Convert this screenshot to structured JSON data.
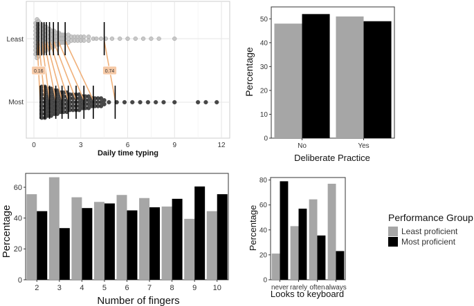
{
  "colors": {
    "least": "#a6a6a6",
    "most": "#000000",
    "panel_bg": "#ffffff",
    "grid": "#e6e6e6",
    "connector": "#f0b079",
    "dot_least": "#bdbdbd",
    "dot_most": "#1a1a1a"
  },
  "legend": {
    "title": "Performance Group",
    "items": [
      "Least proficient",
      "Most proficient"
    ]
  },
  "chart_data": [
    {
      "type": "scatter",
      "xlabel": "Daily time typing",
      "ylabel": "",
      "xlim": [
        0,
        12
      ],
      "xticks": [
        "0",
        "3",
        "6",
        "9",
        "12"
      ],
      "ycategories": [
        "Least",
        "Most"
      ],
      "grid": true,
      "quantiles": {
        "least": [
          0.2,
          0.3,
          0.5,
          0.65,
          0.8,
          1.0,
          1.25,
          1.55,
          2.0,
          4.5
        ],
        "most": [
          0.4,
          0.7,
          1.0,
          1.4,
          1.8,
          2.2,
          2.7,
          3.2,
          3.8,
          5.2
        ]
      },
      "annotations": [
        {
          "label": "0.16",
          "quantile_index": 0
        },
        {
          "label": "0.74",
          "quantile_index": 9
        }
      ],
      "points": {
        "least_x": [
          0.1,
          0.2,
          0.3,
          0.4,
          0.5,
          0.6,
          0.7,
          0.8,
          0.9,
          1.0,
          1.1,
          1.2,
          1.3,
          1.4,
          1.5,
          1.6,
          1.7,
          1.8,
          1.9,
          2.0,
          2.2,
          2.4,
          2.6,
          2.8,
          3.0,
          3.2,
          3.5,
          3.8,
          4.0,
          4.3,
          4.6,
          5.0,
          5.5,
          6.0,
          6.5,
          7.0,
          7.5,
          8.0,
          9.0
        ],
        "least_counts": [
          9,
          11,
          10,
          9,
          8,
          8,
          7,
          7,
          6,
          6,
          5,
          5,
          5,
          4,
          4,
          4,
          3,
          3,
          3,
          3,
          3,
          2,
          2,
          2,
          2,
          2,
          2,
          1,
          1,
          1,
          1,
          1,
          1,
          1,
          1,
          1,
          1,
          1,
          1
        ],
        "most_x": [
          0.5,
          0.7,
          0.9,
          1.1,
          1.3,
          1.5,
          1.7,
          1.9,
          2.1,
          2.3,
          2.5,
          2.7,
          2.9,
          3.1,
          3.3,
          3.5,
          3.7,
          3.9,
          4.1,
          4.3,
          4.5,
          4.8,
          5.3,
          5.8,
          6.3,
          6.8,
          7.3,
          7.8,
          8.3,
          9.0,
          10.5,
          11.0,
          11.7
        ],
        "most_counts": [
          9,
          9,
          8,
          8,
          7,
          7,
          6,
          6,
          6,
          5,
          5,
          5,
          5,
          4,
          4,
          4,
          3,
          3,
          3,
          3,
          2,
          1,
          1,
          1,
          1,
          1,
          1,
          1,
          1,
          1,
          1,
          1,
          1
        ]
      }
    },
    {
      "type": "bar",
      "xlabel": "Deliberate Practice",
      "ylabel": "Percentage",
      "categories": [
        "No",
        "Yes"
      ],
      "ylim": [
        0,
        55
      ],
      "yticks": [
        0,
        10,
        20,
        30,
        40,
        50
      ],
      "series": [
        {
          "name": "Least proficient",
          "values": [
            48,
            51
          ]
        },
        {
          "name": "Most proficient",
          "values": [
            52,
            49
          ]
        }
      ]
    },
    {
      "type": "bar",
      "xlabel": "Number of fingers",
      "ylabel": "Percentage",
      "categories": [
        "2",
        "3",
        "4",
        "5",
        "6",
        "7",
        "8",
        "9",
        "10"
      ],
      "ylim": [
        0,
        69
      ],
      "yticks": [
        0,
        20,
        40,
        60
      ],
      "series": [
        {
          "name": "Least proficient",
          "values": [
            55.5,
            66.5,
            53.5,
            50.5,
            55,
            53,
            47.5,
            39.5,
            44.5
          ]
        },
        {
          "name": "Most proficient",
          "values": [
            44.5,
            33.5,
            46.5,
            49.5,
            45,
            47,
            52.5,
            60.5,
            55.5
          ]
        }
      ]
    },
    {
      "type": "bar",
      "xlabel": "Looks to keyboard",
      "ylabel": "Percentage",
      "categories": [
        "never",
        "rarely",
        "often",
        "always"
      ],
      "ylim": [
        0,
        82
      ],
      "yticks": [
        0,
        20,
        40,
        60,
        80
      ],
      "series": [
        {
          "name": "Least proficient",
          "values": [
            21,
            43,
            64.5,
            77
          ]
        },
        {
          "name": "Most proficient",
          "values": [
            79,
            57,
            35.5,
            23
          ]
        }
      ]
    }
  ]
}
